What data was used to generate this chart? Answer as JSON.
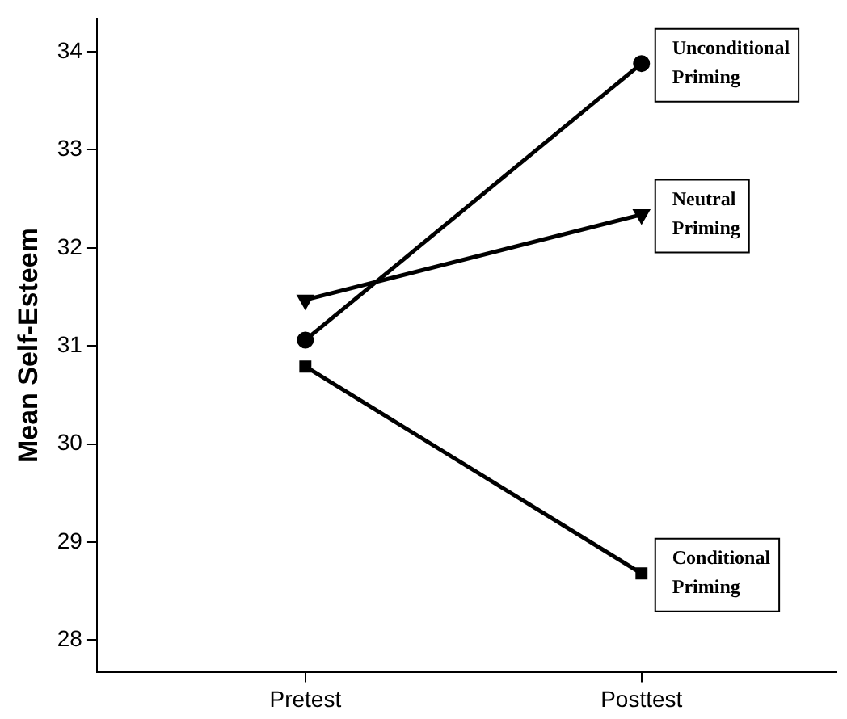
{
  "chart_data": {
    "type": "line",
    "ylabel": "Mean Self-Esteem",
    "categories": [
      "Pretest",
      "Posttest"
    ],
    "ylim": [
      27.67,
      34.34
    ],
    "yticks": [
      28,
      29,
      30,
      31,
      32,
      33,
      34
    ],
    "grid": false,
    "legend": false,
    "line_style": "solid",
    "series": [
      {
        "name": "Unconditional Priming",
        "color": "#000000",
        "marker": "circle",
        "values": [
          31.06,
          33.88
        ]
      },
      {
        "name": "Neutral Priming",
        "color": "#000000",
        "marker": "triangle",
        "values": [
          31.47,
          32.34
        ]
      },
      {
        "name": "Conditional Priming",
        "color": "#000000",
        "marker": "square",
        "values": [
          30.79,
          28.68
        ]
      }
    ]
  }
}
